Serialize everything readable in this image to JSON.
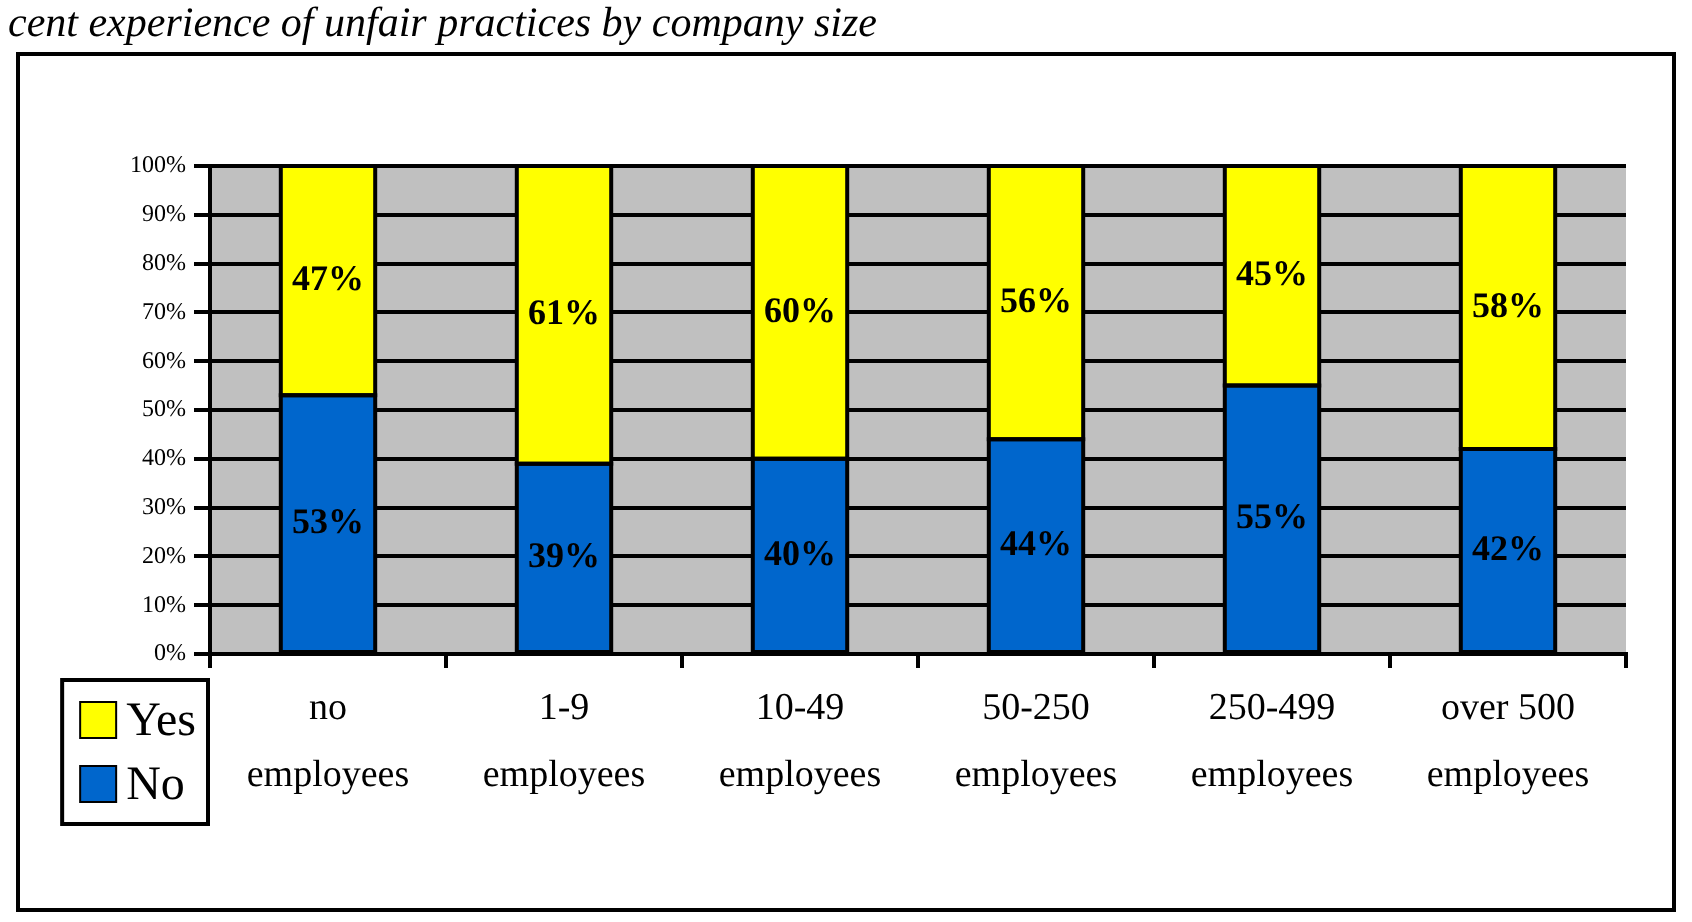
{
  "chart_data": {
    "type": "bar",
    "title": "cent experience of unfair practices by company size",
    "categories": [
      "no employees",
      "1-9 employees",
      "10-49 employees",
      "50-250 employees",
      "250-499 employees",
      "over 500 employees"
    ],
    "stacked": true,
    "series": [
      {
        "name": "No",
        "color": "#0066cc",
        "values": [
          53,
          39,
          40,
          44,
          55,
          42
        ],
        "value_labels": [
          "53%",
          "39%",
          "40%",
          "44%",
          "55%",
          "42%"
        ]
      },
      {
        "name": "Yes",
        "color": "#ffff00",
        "values": [
          47,
          61,
          60,
          56,
          45,
          58
        ],
        "value_labels": [
          "47%",
          "61%",
          "60%",
          "56%",
          "45%",
          "58%"
        ]
      }
    ],
    "ylim": [
      0,
      100
    ],
    "yticks": [
      {
        "value": 0,
        "label": "0%"
      },
      {
        "value": 10,
        "label": "10%"
      },
      {
        "value": 20,
        "label": "20%"
      },
      {
        "value": 30,
        "label": "30%"
      },
      {
        "value": 40,
        "label": "40%"
      },
      {
        "value": 50,
        "label": "50%"
      },
      {
        "value": 60,
        "label": "60%"
      },
      {
        "value": 70,
        "label": "70%"
      },
      {
        "value": 80,
        "label": "80%"
      },
      {
        "value": 90,
        "label": "90%"
      },
      {
        "value": 100,
        "label": "100%"
      }
    ],
    "grid": "y",
    "legend": "bottom left"
  }
}
